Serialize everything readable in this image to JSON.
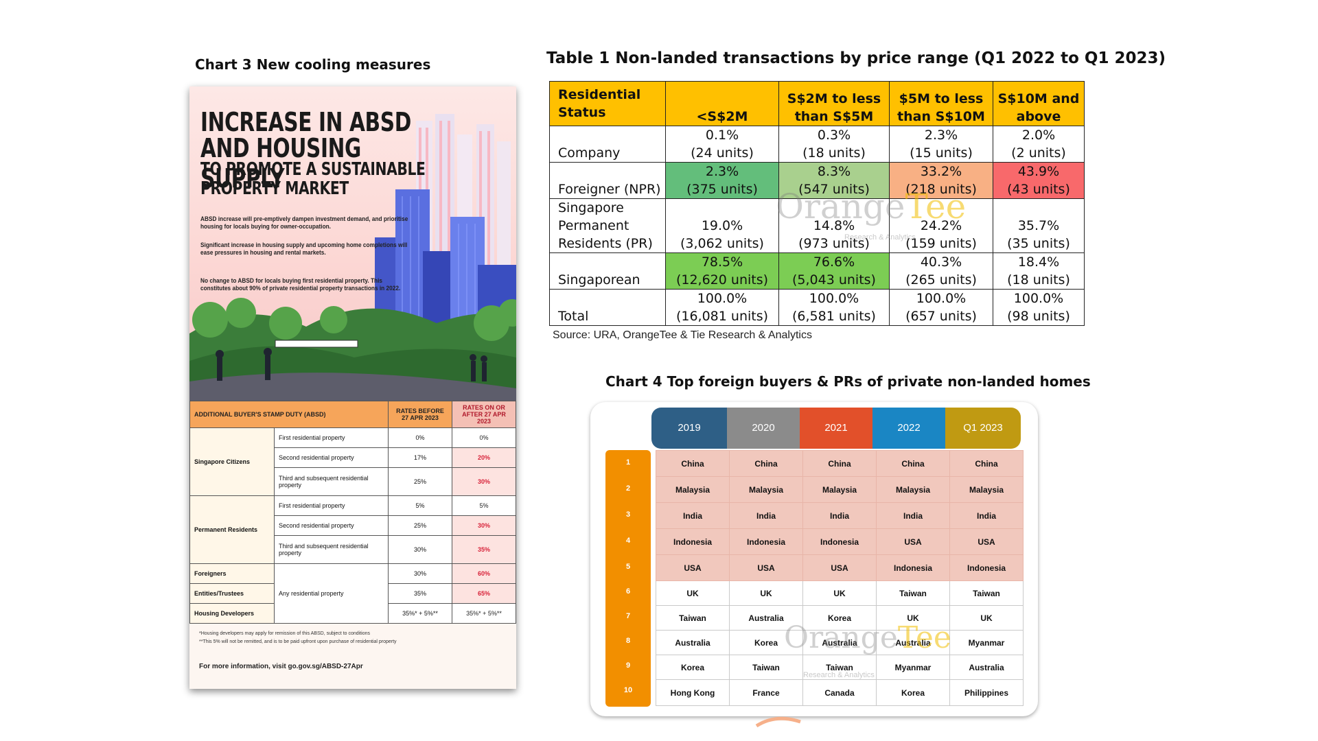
{
  "chart3": {
    "caption": "Chart 3 New cooling measures",
    "headline": [
      "INCREASE IN ABSD",
      "AND HOUSING SUPPLY"
    ],
    "subheadline": [
      "TO PROMOTE A SUSTAINABLE",
      "PROPERTY MARKET"
    ],
    "paragraphs": [
      "ABSD increase will pre-emptively dampen investment demand, and prioritise housing for locals buying for owner-occupation.",
      "Significant increase in housing supply and upcoming home completions will ease pressures in housing and rental markets.",
      "No change to ABSD for locals buying first residential property. This constitutes about 90% of private residential property transactions in 2022."
    ],
    "absd_table": {
      "header": [
        "ADDITIONAL BUYER'S STAMP DUTY (ABSD)",
        "RATES BEFORE 27 APR 2023",
        "RATES ON OR AFTER 27 APR 2023"
      ],
      "groups": [
        "Singapore Citizens",
        "Permanent Residents",
        "Foreigners",
        "Entities/Trustees",
        "Housing Developers"
      ],
      "rows": [
        {
          "property": "First residential property",
          "before": "0%",
          "after": "0%"
        },
        {
          "property": "Second residential property",
          "before": "17%",
          "after": "20%"
        },
        {
          "property": "Third and subsequent residential property",
          "before": "25%",
          "after": "30%"
        },
        {
          "property": "First residential property",
          "before": "5%",
          "after": "5%"
        },
        {
          "property": "Second residential property",
          "before": "25%",
          "after": "30%"
        },
        {
          "property": "Third and subsequent residential property",
          "before": "30%",
          "after": "35%"
        },
        {
          "property": "Any residential property",
          "before": "30%",
          "after": "60%"
        },
        {
          "property": "",
          "before": "35%",
          "after": "65%"
        },
        {
          "property": "",
          "before": "35%* + 5%**",
          "after": "35%* + 5%**"
        }
      ]
    },
    "notes": [
      "*Housing developers may apply for remission of this ABSD, subject to conditions",
      "**This 5% will not be remitted, and is to be paid upfront upon purchase of residential property"
    ],
    "more_info_prefix": "For more information, visit",
    "more_info_link": "go.gov.sg/ABSD-27Apr"
  },
  "table1": {
    "caption": "Table 1 Non-landed transactions by price range (Q1 2022 to Q1 2023)",
    "header": [
      "Residential Status",
      "<S$2M",
      "S$2M to less than S$5M",
      "$5M to less than S$10M",
      "S$10M and above"
    ],
    "rows": [
      {
        "label": "Company",
        "cells": [
          [
            "0.1%",
            "(24 units)"
          ],
          [
            "0.3%",
            "(18 units)"
          ],
          [
            "2.3%",
            "(15 units)"
          ],
          [
            "2.0%",
            "(2 units)"
          ]
        ]
      },
      {
        "label": "Foreigner (NPR)",
        "cells": [
          [
            "2.3%",
            "(375 units)"
          ],
          [
            "8.3%",
            "(547 units)"
          ],
          [
            "33.2%",
            "(218 units)"
          ],
          [
            "43.9%",
            "(43 units)"
          ]
        ]
      },
      {
        "label": "Singapore Permanent Residents (PR)",
        "cells": [
          [
            "19.0%",
            "(3,062 units)"
          ],
          [
            "14.8%",
            "(973 units)"
          ],
          [
            "24.2%",
            "(159 units)"
          ],
          [
            "35.7%",
            "(35 units)"
          ]
        ]
      },
      {
        "label": "Singaporean",
        "cells": [
          [
            "78.5%",
            "(12,620 units)"
          ],
          [
            "76.6%",
            "(5,043 units)"
          ],
          [
            "40.3%",
            "(265 units)"
          ],
          [
            "18.4%",
            "(18 units)"
          ]
        ]
      },
      {
        "label": "Total",
        "cells": [
          [
            "100.0%",
            "(16,081 units)"
          ],
          [
            "100.0%",
            "(6,581 units)"
          ],
          [
            "100.0%",
            "(657 units)"
          ],
          [
            "100.0%",
            "(98 units)"
          ]
        ]
      }
    ],
    "highlight_colors": {
      "foreigner": [
        "#63be7b",
        "#a9d08e",
        "#f8b084",
        "#f8696b"
      ],
      "singaporean": [
        "#7ccd54",
        "#7ccd54",
        "#ffffff",
        "#ffffff"
      ]
    },
    "source": "Source: URA, OrangeTee & Tie Research & Analytics"
  },
  "watermark": {
    "orange": "Orange",
    "tee": "Tee",
    "sub": "Research & Analytics"
  },
  "chart4": {
    "caption": "Chart 4 Top foreign buyers & PRs of private non-landed homes",
    "years": [
      "2019",
      "2020",
      "2021",
      "2022",
      "Q1 2023"
    ],
    "year_colors": [
      "#2e5f86",
      "#8b8b8b",
      "#e2502a",
      "#1a86c4",
      "#c09a12"
    ],
    "ranks": [
      "1",
      "2",
      "3",
      "4",
      "5",
      "6",
      "7",
      "8",
      "9",
      "10"
    ],
    "rows": [
      [
        "China",
        "China",
        "China",
        "China",
        "China"
      ],
      [
        "Malaysia",
        "Malaysia",
        "Malaysia",
        "Malaysia",
        "Malaysia"
      ],
      [
        "India",
        "India",
        "India",
        "India",
        "India"
      ],
      [
        "Indonesia",
        "Indonesia",
        "Indonesia",
        "USA",
        "USA"
      ],
      [
        "USA",
        "USA",
        "USA",
        "Indonesia",
        "Indonesia"
      ],
      [
        "UK",
        "UK",
        "UK",
        "Taiwan",
        "Taiwan"
      ],
      [
        "Taiwan",
        "Australia",
        "Korea",
        "UK",
        "UK"
      ],
      [
        "Australia",
        "Korea",
        "Australia",
        "Australia",
        "Myanmar"
      ],
      [
        "Korea",
        "Taiwan",
        "Taiwan",
        "Myanmar",
        "Australia"
      ],
      [
        "Hong Kong",
        "France",
        "Canada",
        "Korea",
        "Philippines"
      ]
    ]
  }
}
